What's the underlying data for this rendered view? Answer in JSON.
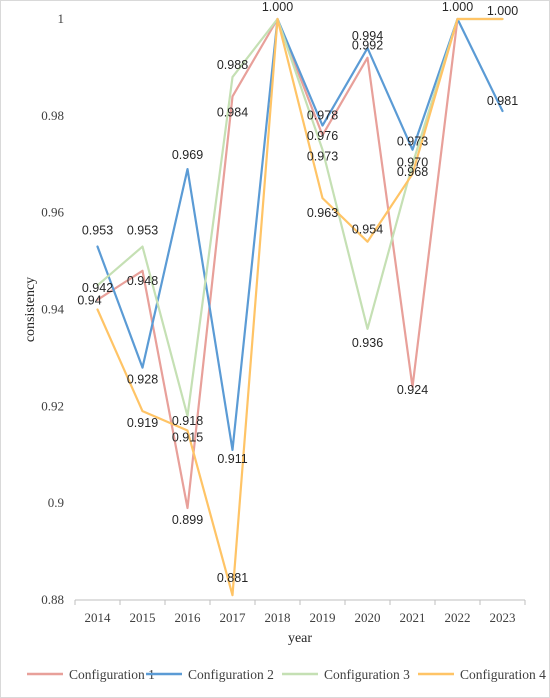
{
  "chart_data": {
    "type": "line",
    "title": "",
    "xlabel": "year",
    "ylabel": "consistency",
    "x": [
      "2014",
      "2015",
      "2016",
      "2017",
      "2018",
      "2019",
      "2020",
      "2021",
      "2022",
      "2023"
    ],
    "ylim": [
      0.88,
      1.0
    ],
    "ytick_labels": [
      "0.88",
      "0.9",
      "0.92",
      "0.94",
      "0.96",
      "0.98",
      "1"
    ],
    "ytick_values": [
      0.88,
      0.9,
      0.92,
      0.94,
      0.96,
      0.98,
      1.0
    ],
    "grid": false,
    "legend_position": "bottom",
    "series": [
      {
        "name": "Configuration 1",
        "color": "#E8A09A",
        "values": [
          0.942,
          0.948,
          0.899,
          0.984,
          1.0,
          0.976,
          0.992,
          0.924,
          1.0,
          null
        ],
        "labels": [
          "0.942",
          "0.948",
          "0.899",
          "0.984",
          "1.000",
          "0.976",
          "0.992",
          "0.924",
          "1.000",
          ""
        ]
      },
      {
        "name": "Configuration 2",
        "color": "#5B9BD5",
        "values": [
          0.953,
          0.928,
          0.969,
          0.911,
          1.0,
          0.978,
          0.994,
          0.973,
          1.0,
          0.981
        ],
        "labels": [
          "0.953",
          "0.928",
          "0.969",
          "0.911",
          "",
          "0.978",
          "0.994",
          "0.973",
          "",
          "0.981"
        ]
      },
      {
        "name": "Configuration 3",
        "color": "#C5E0B4",
        "values": [
          0.945,
          0.953,
          0.918,
          0.988,
          1.0,
          0.973,
          0.936,
          0.97,
          1.0,
          1.0
        ],
        "labels": [
          "",
          "0.953",
          "0.918",
          "0.988",
          "",
          "0.973",
          "0.936",
          "0.970",
          "",
          ""
        ]
      },
      {
        "name": "Configuration 4",
        "color": "#FFC466",
        "values": [
          0.94,
          0.919,
          0.915,
          0.881,
          1.0,
          0.963,
          0.954,
          0.968,
          1.0,
          1.0
        ],
        "labels": [
          "0.94",
          "0.919",
          "0.915",
          "0.881",
          "",
          "0.963",
          "0.954",
          "0.968",
          "",
          "1.000"
        ]
      }
    ]
  }
}
